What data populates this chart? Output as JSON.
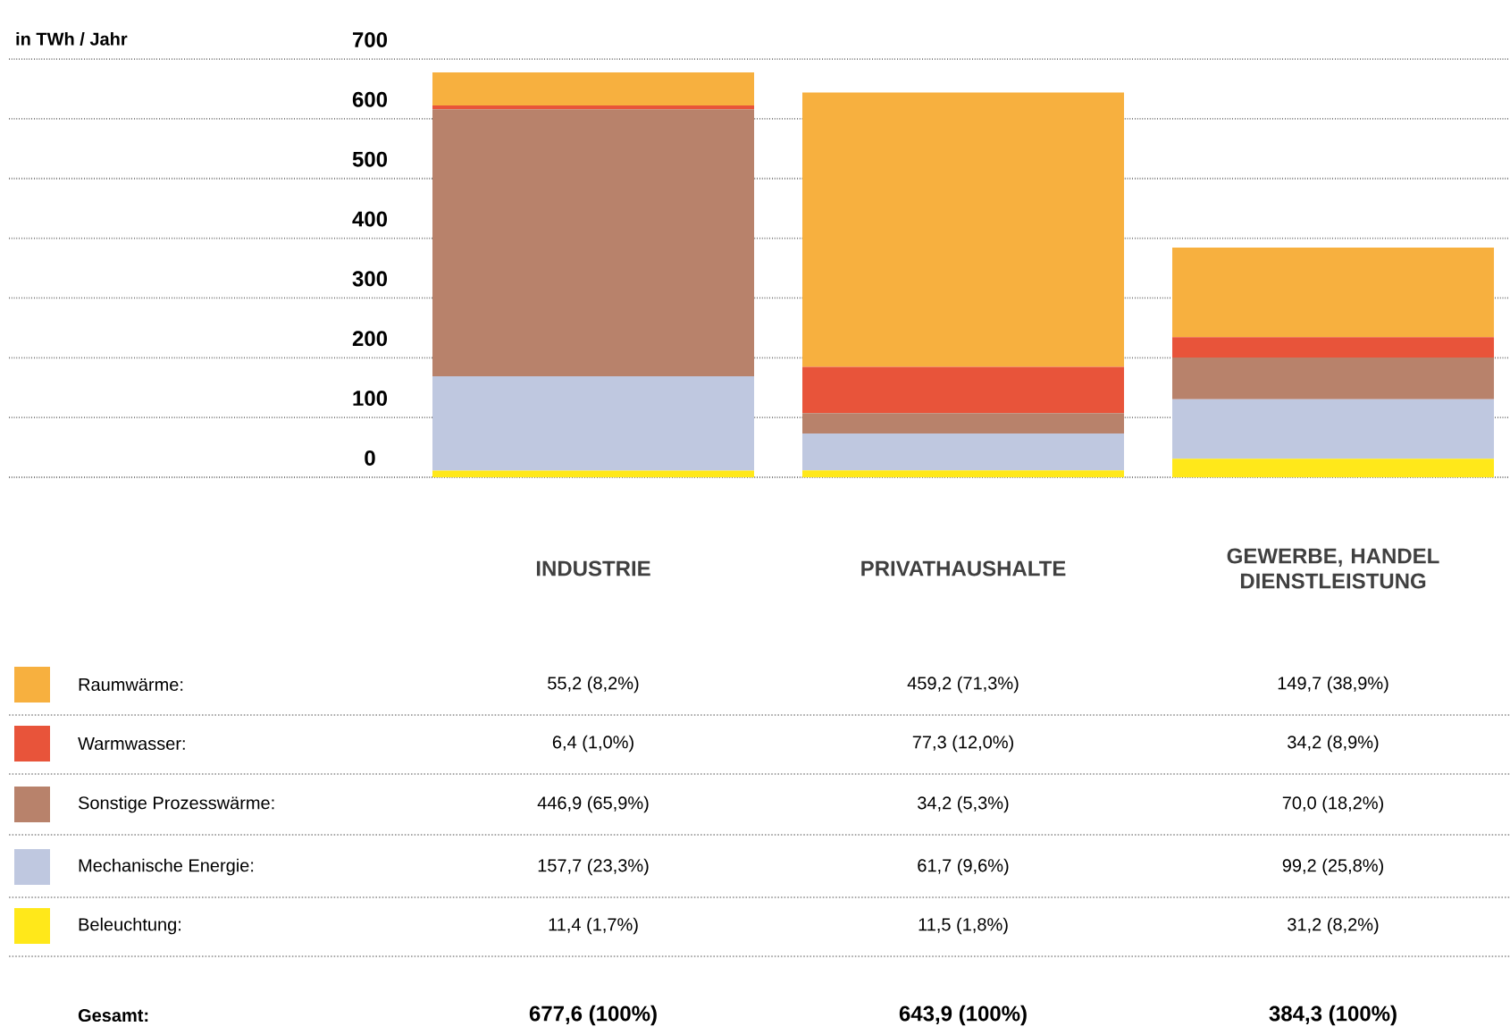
{
  "chart_data": {
    "type": "bar",
    "stacked": true,
    "categories": [
      "INDUSTRIE",
      "PRIVATHAUSHALTE",
      "GEWERBE, HANDEL DIENSTLEISTUNG"
    ],
    "ylim": [
      0,
      700
    ],
    "yticks": [
      0,
      100,
      200,
      300,
      400,
      500,
      600,
      700
    ],
    "grid": "y",
    "legend": "bottom left",
    "series": [
      {
        "name": "Beleuchtung:",
        "color": "#ffe81a",
        "values": [
          11.4,
          11.5,
          31.2
        ],
        "value_labels": [
          "11,4 (1,7%)",
          "11,5 (1,8%)",
          "31,2 (8,2%)"
        ]
      },
      {
        "name": "Mechanische Energie:",
        "color": "#bfc8e0",
        "values": [
          157.7,
          61.7,
          99.2
        ],
        "value_labels": [
          "157,7 (23,3%)",
          "61,7 (9,6%)",
          "99,2 (25,8%)"
        ]
      },
      {
        "name": "Sonstige Prozesswärme:",
        "color": "#b8826b",
        "values": [
          446.9,
          34.2,
          70.0
        ],
        "value_labels": [
          "446,9 (65,9%)",
          "34,2 (5,3%)",
          "70,0 (18,2%)"
        ]
      },
      {
        "name": "Warmwasser:",
        "color": "#e8543a",
        "values": [
          6.4,
          77.3,
          34.2
        ],
        "value_labels": [
          "6,4 (1,0%)",
          "77,3 (12,0%)",
          "34,2 (8,9%)"
        ]
      },
      {
        "name": "Raumwärme:",
        "color": "#f7b03f",
        "values": [
          55.2,
          459.2,
          149.7
        ],
        "value_labels": [
          "55,2 (8,2%)",
          "459,2 (71,3%)",
          "149,7 (38,9%)"
        ]
      }
    ],
    "annotations": [
      "in TWh / Jahr",
      "Gesamt:",
      "677,6 (100%)",
      "643,9 (100%)",
      "384,3 (100%)"
    ]
  }
}
